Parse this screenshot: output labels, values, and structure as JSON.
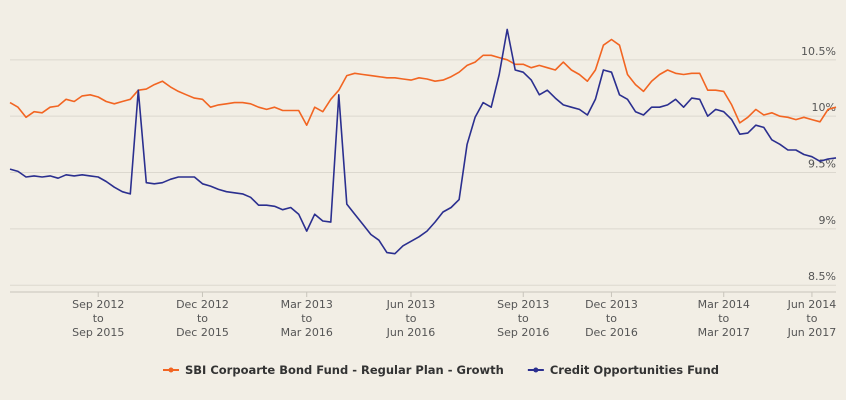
{
  "chart_data": {
    "type": "line",
    "categories": [
      null,
      null,
      null,
      null,
      null,
      null,
      null,
      null,
      null,
      null,
      null,
      [
        "Sep 2012",
        "to",
        "Sep 2015"
      ],
      null,
      null,
      null,
      null,
      null,
      null,
      null,
      null,
      null,
      null,
      null,
      null,
      [
        "Dec 2012",
        "to",
        "Dec 2015"
      ],
      null,
      null,
      null,
      null,
      null,
      null,
      null,
      null,
      null,
      null,
      null,
      null,
      [
        "Mar 2013",
        "to",
        "Mar 2016"
      ],
      null,
      null,
      null,
      null,
      null,
      null,
      null,
      null,
      null,
      null,
      null,
      null,
      [
        "Jun 2013",
        "to",
        "Jun 2016"
      ],
      null,
      null,
      null,
      null,
      null,
      null,
      null,
      null,
      null,
      null,
      null,
      null,
      null,
      [
        "Sep 2013",
        "to",
        "Sep 2016"
      ],
      null,
      null,
      null,
      null,
      null,
      null,
      null,
      null,
      null,
      null,
      [
        "Dec 2013",
        "to",
        "Dec 2016"
      ],
      null,
      null,
      null,
      null,
      null,
      null,
      null,
      null,
      null,
      null,
      null,
      null,
      null,
      [
        "Mar 2014",
        "to",
        "Mar 2017"
      ],
      null,
      null,
      null,
      null,
      null,
      null,
      null,
      null,
      null,
      null,
      [
        "Jun 2014",
        "to",
        "Jun 2017"
      ],
      null,
      null,
      null
    ],
    "series": [
      {
        "name": "SBI Corpoarte Bond Fund - Regular Plan - Growth",
        "color": "#f26522",
        "values": [
          10.12,
          10.08,
          9.99,
          10.04,
          10.03,
          10.08,
          10.09,
          10.15,
          10.13,
          10.18,
          10.19,
          10.17,
          10.13,
          10.11,
          10.13,
          10.15,
          10.23,
          10.24,
          10.28,
          10.31,
          10.26,
          10.22,
          10.19,
          10.16,
          10.15,
          10.08,
          10.1,
          10.11,
          10.12,
          10.12,
          10.11,
          10.08,
          10.06,
          10.08,
          10.05,
          10.05,
          10.05,
          9.92,
          10.08,
          10.04,
          10.15,
          10.23,
          10.36,
          10.38,
          10.37,
          10.36,
          10.35,
          10.34,
          10.34,
          10.33,
          10.32,
          10.34,
          10.33,
          10.31,
          10.32,
          10.35,
          10.39,
          10.45,
          10.48,
          10.54,
          10.54,
          10.52,
          10.5,
          10.46,
          10.46,
          10.43,
          10.45,
          10.43,
          10.41,
          10.48,
          10.41,
          10.37,
          10.31,
          10.41,
          10.63,
          10.68,
          10.63,
          10.37,
          10.28,
          10.22,
          10.31,
          10.37,
          10.41,
          10.38,
          10.37,
          10.38,
          10.38,
          10.23,
          10.23,
          10.22,
          10.1,
          9.94,
          9.99,
          10.06,
          10.01,
          10.03,
          10.0,
          9.99,
          9.97,
          9.99,
          9.97,
          9.95,
          10.06,
          10.08
        ]
      },
      {
        "name": "Credit Opportunities Fund",
        "color": "#2b2f8f",
        "values": [
          9.53,
          9.51,
          9.46,
          9.47,
          9.46,
          9.47,
          9.45,
          9.48,
          9.47,
          9.48,
          9.47,
          9.46,
          9.42,
          9.37,
          9.33,
          9.31,
          10.23,
          9.41,
          9.4,
          9.41,
          9.44,
          9.46,
          9.46,
          9.46,
          9.4,
          9.38,
          9.35,
          9.33,
          9.32,
          9.31,
          9.28,
          9.21,
          9.21,
          9.2,
          9.17,
          9.19,
          9.13,
          8.98,
          9.13,
          9.07,
          9.06,
          10.19,
          9.22,
          9.13,
          9.04,
          8.95,
          8.9,
          8.79,
          8.78,
          8.85,
          8.89,
          8.93,
          8.98,
          9.06,
          9.15,
          9.19,
          9.26,
          9.75,
          9.99,
          10.12,
          10.08,
          10.37,
          10.77,
          10.41,
          10.39,
          10.32,
          10.19,
          10.23,
          10.16,
          10.1,
          10.08,
          10.06,
          10.01,
          10.15,
          10.41,
          10.39,
          10.19,
          10.15,
          10.04,
          10.01,
          10.08,
          10.08,
          10.1,
          10.15,
          10.08,
          10.16,
          10.15,
          10.0,
          10.06,
          10.04,
          9.97,
          9.84,
          9.85,
          9.92,
          9.9,
          9.79,
          9.75,
          9.7,
          9.7,
          9.66,
          9.64,
          9.6,
          9.62,
          9.63
        ]
      }
    ],
    "ylim": [
      8.44,
      10.8
    ],
    "yticks": [
      {
        "value": 8.5,
        "label": "8.5%"
      },
      {
        "value": 9,
        "label": "9%"
      },
      {
        "value": 9.5,
        "label": "9.5%"
      },
      {
        "value": 10,
        "label": "10%"
      },
      {
        "value": 10.5,
        "label": "10.5%"
      }
    ],
    "grid": true
  }
}
